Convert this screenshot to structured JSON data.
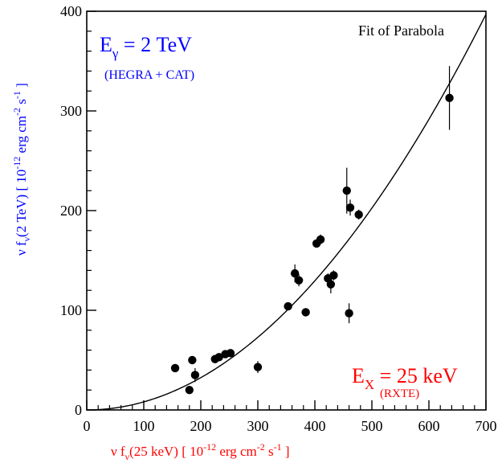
{
  "chart_data": {
    "type": "scatter",
    "title": "",
    "xlabel": {
      "prefix": "ν f",
      "sub": "ν",
      "main": "(25 keV) [ 10",
      "exp1": "-12",
      "mid1": " erg cm",
      "exp2": "-2",
      "mid2": " s",
      "exp3": "-1",
      "end": " ]"
    },
    "ylabel": {
      "prefix": "ν f",
      "sub": "ν",
      "main": "(2 TeV) [ 10",
      "exp1": "-12",
      "mid1": " erg cm",
      "exp2": "-2",
      "mid2": " s",
      "exp3": "-1",
      "end": " ]"
    },
    "xlim": [
      0,
      700
    ],
    "ylim": [
      0,
      400
    ],
    "xticks": [
      0,
      100,
      200,
      300,
      400,
      500,
      600,
      700
    ],
    "yticks": [
      0,
      100,
      200,
      300,
      400
    ],
    "annotations": {
      "fit_label": "Fit of Parabola",
      "gamma_energy": {
        "main": "E",
        "sub": "γ",
        "rest": " = 2 TeV"
      },
      "gamma_source": "(HEGRA + CAT)",
      "xray_energy": {
        "main": "E",
        "sub": "X",
        "rest": " = 25 keV"
      },
      "xray_source": "(RXTE)"
    },
    "fit_curve": {
      "coef_a": 0.00081,
      "coef_b": 0.0,
      "coef_c": 0.0
    },
    "points": [
      {
        "x": 155,
        "y": 42,
        "err": 4
      },
      {
        "x": 180,
        "y": 20,
        "err": 3
      },
      {
        "x": 185,
        "y": 50,
        "err": 4
      },
      {
        "x": 190,
        "y": 35,
        "err": 7
      },
      {
        "x": 225,
        "y": 51,
        "err": 3
      },
      {
        "x": 232,
        "y": 53,
        "err": 3
      },
      {
        "x": 243,
        "y": 56,
        "err": 3
      },
      {
        "x": 252,
        "y": 57,
        "err": 3
      },
      {
        "x": 300,
        "y": 43,
        "err": 6
      },
      {
        "x": 353,
        "y": 104,
        "err": 3
      },
      {
        "x": 365,
        "y": 137,
        "err": 9
      },
      {
        "x": 372,
        "y": 130,
        "err": 6
      },
      {
        "x": 384,
        "y": 98,
        "err": 3
      },
      {
        "x": 403,
        "y": 167,
        "err": 4
      },
      {
        "x": 410,
        "y": 171,
        "err": 5
      },
      {
        "x": 423,
        "y": 132,
        "err": 5
      },
      {
        "x": 428,
        "y": 126,
        "err": 9
      },
      {
        "x": 433,
        "y": 135,
        "err": 5
      },
      {
        "x": 456,
        "y": 220,
        "err": 23
      },
      {
        "x": 462,
        "y": 203,
        "err": 8
      },
      {
        "x": 460,
        "y": 97,
        "err": 10
      },
      {
        "x": 477,
        "y": 196,
        "err": 5
      },
      {
        "x": 636,
        "y": 313,
        "err": 32
      }
    ],
    "colors": {
      "axes": "#000000",
      "points": "#000000",
      "x_label": "#ff0000",
      "y_label": "#0000ff"
    },
    "grid": false,
    "legend": "none"
  }
}
